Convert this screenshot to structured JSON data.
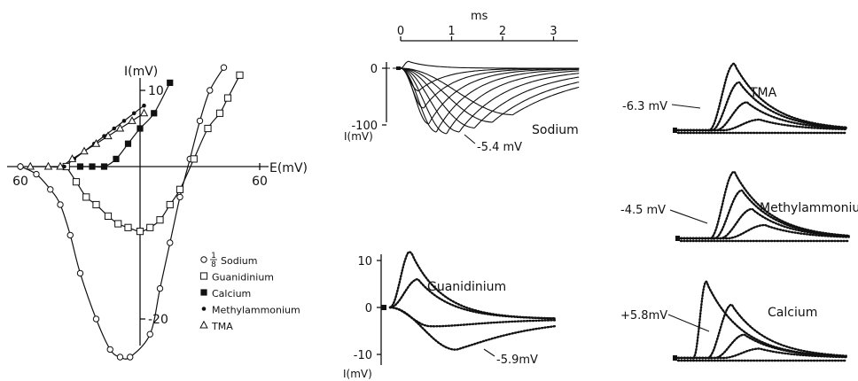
{
  "chart_data": [
    {
      "id": "iv",
      "type": "scatter",
      "xlabel": "E(mV)",
      "ylabel": "I(mV)",
      "x_ticks": [
        {
          "value": -60,
          "label": "60"
        },
        {
          "value": 60,
          "label": "60"
        }
      ],
      "y_ticks": [
        {
          "value": 10,
          "label": "10"
        },
        {
          "value": -20,
          "label": "-20"
        }
      ],
      "xlim": [
        -68,
        70
      ],
      "ylim": [
        -27,
        16
      ],
      "legend_position": "bottom-right",
      "series": [
        {
          "name": "1/8 Sodium",
          "marker": "open-circle",
          "x": [
            -60,
            -52,
            -45,
            -40,
            -35,
            -30,
            -22,
            -15,
            -10,
            -5,
            5,
            10,
            15,
            20,
            25,
            30,
            35,
            42
          ],
          "y": [
            0,
            -1,
            -3,
            -5,
            -9,
            -14,
            -20,
            -24,
            -25,
            -25,
            -22,
            -16,
            -10,
            -4,
            1,
            6,
            10,
            13
          ]
        },
        {
          "name": "Guanidinium",
          "marker": "open-square",
          "x": [
            -37,
            -32,
            -27,
            -22,
            -16,
            -11,
            -6,
            0,
            5,
            10,
            15,
            20,
            27,
            34,
            40,
            44,
            50
          ],
          "y": [
            0,
            -2,
            -4,
            -5,
            -6.5,
            -7.5,
            -8,
            -8.5,
            -8,
            -7,
            -5,
            -3,
            1,
            5,
            7,
            9,
            12
          ]
        },
        {
          "name": "Calcium",
          "marker": "filled-square",
          "x": [
            -30,
            -24,
            -18,
            -12,
            -6,
            0,
            7,
            15
          ],
          "y": [
            0,
            0,
            0,
            1,
            3,
            5,
            7,
            11
          ]
        },
        {
          "name": "Methylammonium",
          "marker": "filled-dot",
          "x": [
            -38,
            -33,
            -28,
            -23,
            -18,
            -13,
            -8,
            -3,
            2
          ],
          "y": [
            0,
            1,
            2,
            3,
            4,
            5,
            6,
            7,
            8
          ]
        },
        {
          "name": "TMA",
          "marker": "open-triangle",
          "x": [
            -55,
            -46,
            -40,
            -34,
            -28,
            -22,
            -16,
            -10,
            -4,
            2
          ],
          "y": [
            0,
            0,
            0,
            1,
            2,
            3,
            4,
            5,
            6,
            7
          ]
        }
      ]
    },
    {
      "id": "sodium",
      "type": "line",
      "title": "Sodium",
      "xlabel": "ms",
      "ylabel": "I(mV)",
      "x_ticks": [
        0,
        1,
        2,
        3
      ],
      "y_ticks": [
        0,
        -100
      ],
      "xlim": [
        -0.3,
        3.5
      ],
      "ylim": [
        -130,
        25
      ],
      "annotation": "-5.4 mV",
      "series": [
        {
          "name": "",
          "peak_time": 0.35,
          "peak": -40
        },
        {
          "name": "",
          "peak_time": 0.45,
          "peak": -70
        },
        {
          "name": "",
          "peak_time": 0.55,
          "peak": -98
        },
        {
          "name": "",
          "peak_time": 0.7,
          "peak": -112
        },
        {
          "name": "",
          "peak_time": 0.9,
          "peak": -115
        },
        {
          "name": "",
          "peak_time": 1.15,
          "peak": -112
        },
        {
          "name": "",
          "peak_time": 1.45,
          "peak": -105
        },
        {
          "name": "",
          "peak_time": 1.8,
          "peak": -95
        },
        {
          "name": "",
          "peak_time": 2.2,
          "peak": -82
        },
        {
          "name": "",
          "peak_time": 0.15,
          "peak": 12
        }
      ]
    },
    {
      "id": "guanidinium",
      "type": "line",
      "title": "Guanidinium",
      "ylabel": "I(mV)",
      "y_ticks": [
        10,
        0,
        -10
      ],
      "xlim": [
        -0.3,
        3.5
      ],
      "ylim": [
        -12,
        13
      ],
      "annotation": "-5.9mV",
      "series": [
        {
          "name": "",
          "peak_time": 0.4,
          "peak": 12
        },
        {
          "name": "",
          "peak_time": 0.55,
          "peak": 6
        },
        {
          "name": "",
          "peak_time": 0.8,
          "peak": -4
        },
        {
          "name": "",
          "peak_time": 1.3,
          "peak": -9
        }
      ]
    },
    {
      "id": "tma",
      "type": "line",
      "title": "TMA",
      "annotation": "-6.3 mV",
      "series": [
        {
          "name": "",
          "peak_time": 1.1,
          "peak": 1.0
        },
        {
          "name": "",
          "peak_time": 1.2,
          "peak": 0.72
        },
        {
          "name": "",
          "peak_time": 1.35,
          "peak": 0.42
        },
        {
          "name": "",
          "peak_time": 1.6,
          "peak": 0.16
        }
      ]
    },
    {
      "id": "methylammonium",
      "type": "line",
      "title": "Methylammonium",
      "annotation": "-4.5 mV",
      "series": [
        {
          "name": "",
          "peak_time": 1.05,
          "peak": 1.0
        },
        {
          "name": "",
          "peak_time": 1.2,
          "peak": 0.72
        },
        {
          "name": "",
          "peak_time": 1.4,
          "peak": 0.44
        },
        {
          "name": "",
          "peak_time": 1.65,
          "peak": 0.2
        }
      ]
    },
    {
      "id": "calcium",
      "type": "line",
      "title": "Calcium",
      "annotation": "+5.8mV",
      "series": [
        {
          "name": "",
          "peak_time": 0.55,
          "peak": 1.15
        },
        {
          "name": "",
          "peak_time": 1.05,
          "peak": 0.8
        },
        {
          "name": "",
          "peak_time": 1.3,
          "peak": 0.35
        },
        {
          "name": "",
          "peak_time": 1.6,
          "peak": 0.14
        }
      ]
    }
  ]
}
